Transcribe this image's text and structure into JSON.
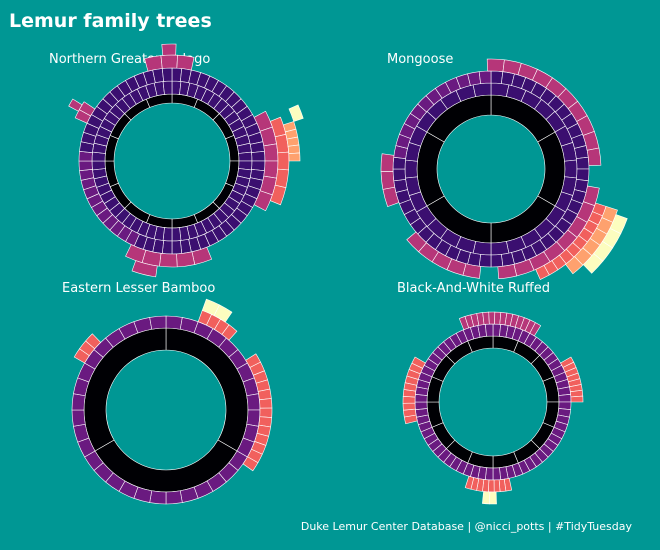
{
  "title": "Lemur family trees",
  "caption": "Duke Lemur Center Database | @nicci_potts | #TidyTuesday",
  "colors": {
    "background": "#009794",
    "gen0": "#000004",
    "gen1": "#3b0f70",
    "gen2": "#6a1a80",
    "gen3": "#b63679",
    "gen4": "#f1605d",
    "gen5": "#fea16e",
    "gen6": "#fcfdbf",
    "segment_border": "#ffffff"
  },
  "chart_data": [
    {
      "type": "sunburst",
      "title": "Northern Greater Galago",
      "rings": [
        {
          "generation": 1,
          "segments": 16
        },
        {
          "generation": 2,
          "segments": 56
        },
        {
          "generation": 3,
          "segments": 60,
          "color_runs": [
            [
              "gen1",
              34
            ],
            [
              "gen2",
              12
            ],
            [
              "gen1",
              14
            ]
          ]
        },
        {
          "generation": 4,
          "segments": 16,
          "arcs": [
            [
              345,
              372,
              "gen3"
            ],
            [
              62,
              118,
              "gen3"
            ],
            [
              158,
              206,
              "gen3"
            ],
            [
              294,
              304,
              "gen3"
            ]
          ]
        },
        {
          "generation": 5,
          "segments": 8,
          "arcs": [
            [
              355,
              362,
              "gen3"
            ],
            [
              68,
              112,
              "gen4"
            ],
            [
              188,
              200,
              "gen3"
            ],
            [
              298,
              302,
              "gen3"
            ]
          ]
        },
        {
          "generation": 6,
          "segments": 5,
          "arcs": [
            [
              72,
              90,
              "gen5"
            ]
          ]
        },
        {
          "generation": 7,
          "segments": 1,
          "arcs": [
            [
              66,
              72,
              "gen6"
            ]
          ]
        }
      ]
    },
    {
      "type": "sunburst",
      "title": "Mongoose",
      "rings": [
        {
          "generation": 1,
          "segments": 6
        },
        {
          "generation": 2,
          "segments": 30
        },
        {
          "generation": 3,
          "segments": 52,
          "color_runs": [
            [
              "gen1",
              40
            ],
            [
              "gen2",
              12
            ]
          ]
        },
        {
          "generation": 4,
          "segments": 26,
          "arcs": [
            [
              -2,
              88,
              "gen3"
            ],
            [
              100,
              176,
              "gen3"
            ],
            [
              186,
              230,
              "gen3"
            ],
            [
              250,
              278,
              "gen3"
            ]
          ]
        },
        {
          "generation": 5,
          "segments": 10,
          "arcs": [
            [
              108,
              156,
              "gen4"
            ]
          ]
        },
        {
          "generation": 6,
          "segments": 6,
          "arcs": [
            [
              108,
              142,
              "gen5"
            ]
          ]
        },
        {
          "generation": 7,
          "segments": 4,
          "arcs": [
            [
              110,
              136,
              "gen6"
            ]
          ]
        }
      ]
    },
    {
      "type": "sunburst",
      "title": "Eastern Lesser Bamboo",
      "rings": [
        {
          "generation": 1,
          "segments": 3
        },
        {
          "generation": 2,
          "segments": 36,
          "color_runs": [
            [
              "gen2",
              36
            ]
          ]
        },
        {
          "generation": 3,
          "segments": 20,
          "arcs": [
            [
              20,
              42,
              "gen4"
            ],
            [
              58,
              125,
              "gen4"
            ],
            [
              300,
              316,
              "gen4"
            ]
          ]
        },
        {
          "generation": 4,
          "segments": 2,
          "arcs": [
            [
              20,
              34,
              "gen6"
            ]
          ]
        }
      ]
    },
    {
      "type": "sunburst",
      "title": "Black-And-White Ruffed",
      "rings": [
        {
          "generation": 1,
          "segments": 16
        },
        {
          "generation": 2,
          "segments": 64,
          "color_runs": [
            [
              "gen2",
              64
            ]
          ]
        },
        {
          "generation": 3,
          "segments": 40,
          "arcs": [
            [
              338,
              392,
              "gen3"
            ],
            [
              60,
              90,
              "gen4"
            ],
            [
              168,
              198,
              "gen4"
            ],
            [
              256,
              300,
              "gen4"
            ]
          ]
        },
        {
          "generation": 4,
          "segments": 2,
          "arcs": [
            [
              178,
              186,
              "gen6"
            ]
          ]
        }
      ]
    }
  ]
}
